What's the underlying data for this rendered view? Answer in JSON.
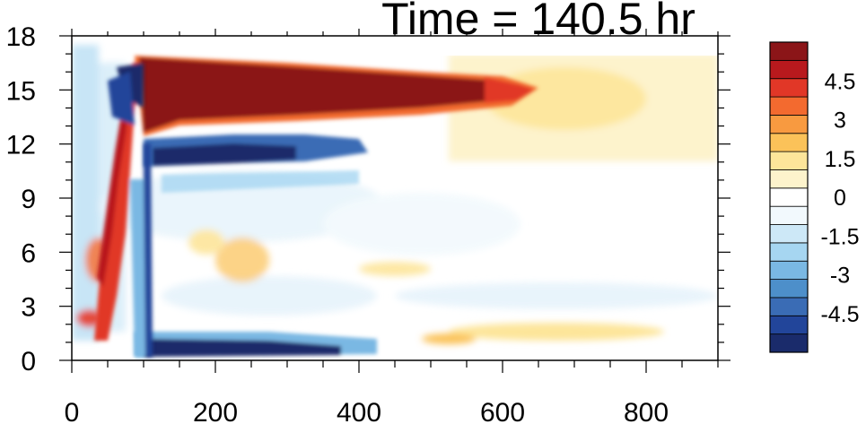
{
  "chart_data": {
    "type": "heatmap",
    "title": "Time = 140.5 hr",
    "x_ticks": [
      0,
      200,
      400,
      600,
      800
    ],
    "y_ticks": [
      0,
      3,
      6,
      9,
      12,
      15,
      18
    ],
    "x_range": [
      0,
      900
    ],
    "y_range": [
      0,
      18
    ],
    "grid": false,
    "colorbar": {
      "placement": "right",
      "levels": [
        -5.25,
        -4.5,
        -3.75,
        -3,
        -2.25,
        -1.5,
        -0.75,
        0,
        0.75,
        1.5,
        2.25,
        3,
        3.75,
        4.5,
        5.25
      ],
      "labels": [
        "4.5",
        "3",
        "1.5",
        "0",
        "-1.5",
        "-3",
        "-4.5"
      ],
      "label_values": [
        4.5,
        3,
        1.5,
        0,
        -1.5,
        -3,
        -4.5
      ],
      "colors": [
        "#1a2b6b",
        "#22459a",
        "#3a6cb5",
        "#4d8fca",
        "#7ab8e3",
        "#a6d6f1",
        "#cde8f7",
        "#f2f9fd",
        "#ffffff",
        "#fdf3cc",
        "#fde59a",
        "#fbc259",
        "#f89a40",
        "#f36a2f",
        "#e13727",
        "#b8191d",
        "#8b1518"
      ]
    },
    "features": [
      {
        "desc": "strong positive band",
        "x": [
          100,
          600
        ],
        "y": [
          12.5,
          17
        ],
        "value": 5.5
      },
      {
        "desc": "negative band below",
        "x": [
          100,
          400
        ],
        "y": [
          10.5,
          12
        ],
        "value": -4.5
      },
      {
        "desc": "near-surface negative layer",
        "x": [
          100,
          400
        ],
        "y": [
          0.2,
          1.5
        ],
        "value": -5
      },
      {
        "desc": "vertical positive tilt",
        "x": [
          70,
          100
        ],
        "y": [
          2,
          17
        ],
        "value": 4
      },
      {
        "desc": "vertical negative column",
        "x": [
          60,
          100
        ],
        "y": [
          10,
          17
        ],
        "value": -5
      },
      {
        "desc": "weak positive tail",
        "x": [
          500,
          900
        ],
        "y": [
          12,
          16
        ],
        "value": 1
      },
      {
        "desc": "weak positive near surface",
        "x": [
          500,
          750
        ],
        "y": [
          0.5,
          2
        ],
        "value": 1.2
      }
    ]
  }
}
